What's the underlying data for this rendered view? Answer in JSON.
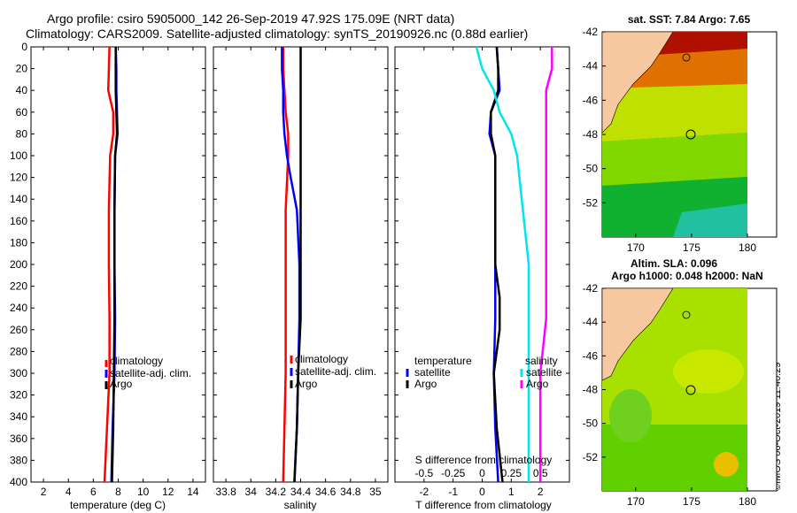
{
  "header": {
    "title_line1": "Argo profile: csiro 5905000_142 26-Sep-2019 47.92S 175.09E (NRT data)",
    "title_line2": "Climatology: CARS2009. Satellite-adjusted climatology: synTS_20190926.nc (0.88d earlier)"
  },
  "credit": "©IMOS 06-Oct-2019 11:40:29",
  "colors": {
    "climatology": "#ff0000",
    "satellite": "#0000ff",
    "argo": "#000000",
    "sat_salinity": "#00e5ee",
    "argo_salinity": "#ff00ff"
  },
  "chart_data": [
    {
      "type": "line",
      "id": "temperature",
      "xlabel": "temperature (deg C)",
      "ylabel": "",
      "xlim": [
        1,
        15
      ],
      "ylim": [
        400,
        0
      ],
      "xticks": [
        "2",
        "4",
        "6",
        "8",
        "10",
        "12",
        "14"
      ],
      "yticks": [
        "0",
        "20",
        "40",
        "60",
        "80",
        "100",
        "120",
        "140",
        "160",
        "180",
        "200",
        "220",
        "240",
        "260",
        "280",
        "300",
        "320",
        "340",
        "360",
        "380",
        "400"
      ],
      "legend": [
        "climatology",
        "satellite-adj. clim.",
        "Argo"
      ],
      "legend_position": "middle-right",
      "series": [
        {
          "name": "climatology",
          "depth": [
            0,
            20,
            40,
            60,
            80,
            100,
            150,
            200,
            250,
            300,
            350,
            400
          ],
          "values": [
            7.3,
            7.25,
            7.2,
            7.6,
            7.6,
            7.35,
            7.25,
            7.25,
            7.3,
            7.3,
            7.1,
            6.9
          ]
        },
        {
          "name": "satellite-adj. clim.",
          "depth": [
            0,
            20,
            40,
            60,
            80,
            100,
            150,
            200,
            250,
            300,
            350,
            400
          ],
          "values": [
            7.8,
            7.85,
            7.85,
            7.9,
            7.95,
            7.75,
            7.7,
            7.7,
            7.75,
            7.7,
            7.55,
            7.45
          ]
        },
        {
          "name": "Argo",
          "depth": [
            0,
            20,
            40,
            60,
            80,
            100,
            150,
            200,
            250,
            300,
            350,
            400
          ],
          "values": [
            7.8,
            7.8,
            7.8,
            7.85,
            7.9,
            7.75,
            7.7,
            7.7,
            7.7,
            7.65,
            7.6,
            7.5
          ]
        }
      ]
    },
    {
      "type": "line",
      "id": "salinity",
      "xlabel": "salinity",
      "ylabel": "",
      "xlim": [
        33.7,
        35.1
      ],
      "ylim": [
        400,
        0
      ],
      "xticks": [
        "33.8",
        "34",
        "34.2",
        "34.4",
        "34.6",
        "34.8",
        "35"
      ],
      "legend": [
        "climatology",
        "satellite-adj. clim.",
        "Argo"
      ],
      "legend_position": "middle-right",
      "series": [
        {
          "name": "climatology",
          "depth": [
            0,
            20,
            40,
            60,
            80,
            100,
            150,
            200,
            250,
            300,
            350,
            400
          ],
          "values": [
            34.26,
            34.26,
            34.27,
            34.28,
            34.3,
            34.3,
            34.28,
            34.28,
            34.28,
            34.28,
            34.27,
            34.26
          ]
        },
        {
          "name": "satellite-adj. clim.",
          "depth": [
            0,
            20,
            40,
            60,
            80,
            100,
            120,
            150,
            200,
            250,
            300,
            350,
            400
          ],
          "values": [
            34.25,
            34.25,
            34.26,
            34.26,
            34.27,
            34.29,
            34.32,
            34.37,
            34.39,
            34.39,
            34.38,
            34.37,
            34.35
          ]
        },
        {
          "name": "Argo",
          "depth": [
            0,
            20,
            40,
            60,
            80,
            100,
            150,
            200,
            250,
            300,
            350,
            400
          ],
          "values": [
            34.4,
            34.4,
            34.4,
            34.4,
            34.4,
            34.4,
            34.4,
            34.4,
            34.4,
            34.38,
            34.37,
            34.35
          ]
        }
      ]
    },
    {
      "type": "line",
      "id": "difference",
      "xlabel": "T difference from climatology",
      "xlabel_top": "S difference from climatology",
      "xlim": [
        -3,
        3
      ],
      "ylim": [
        400,
        0
      ],
      "xticks": [
        "-2",
        "-1",
        "0",
        "1",
        "2"
      ],
      "xticks_top": [
        "-0.5",
        "-0.25",
        "0",
        "0.25",
        "0.5"
      ],
      "legend_left_title": "temperature",
      "legend_left": [
        "satellite",
        "Argo"
      ],
      "legend_right_title": "salinity",
      "legend_right": [
        "satellite",
        "Argo"
      ],
      "series": [
        {
          "name": "T satellite",
          "depth": [
            0,
            20,
            40,
            60,
            80,
            100,
            150,
            200,
            250,
            300,
            350,
            400
          ],
          "values": [
            0.5,
            0.55,
            0.6,
            0.3,
            0.25,
            0.45,
            0.45,
            0.45,
            0.45,
            0.4,
            0.45,
            0.55
          ]
        },
        {
          "name": "T Argo",
          "depth": [
            0,
            20,
            40,
            60,
            80,
            100,
            150,
            200,
            230,
            260,
            300,
            350,
            400
          ],
          "values": [
            0.5,
            0.55,
            0.55,
            0.3,
            0.3,
            0.45,
            0.45,
            0.45,
            0.6,
            0.6,
            0.4,
            0.5,
            0.7
          ]
        },
        {
          "name": "S satellite",
          "depth": [
            0,
            20,
            40,
            60,
            80,
            100,
            150,
            200,
            250,
            300,
            350,
            400
          ],
          "values": [
            -0.05,
            0,
            0.1,
            0.15,
            0.25,
            0.3,
            0.35,
            0.4,
            0.4,
            0.4,
            0.4,
            0.4
          ]
        },
        {
          "name": "S Argo",
          "depth": [
            0,
            20,
            40,
            60,
            80,
            100,
            150,
            200,
            250,
            300,
            350,
            400
          ],
          "values": [
            0.6,
            0.6,
            0.55,
            0.55,
            0.55,
            0.55,
            0.55,
            0.55,
            0.55,
            0.5,
            0.5,
            0.5
          ]
        }
      ]
    },
    {
      "type": "heatmap",
      "id": "sst-map",
      "title": "sat. SST: 7.84 Argo: 7.65",
      "xticks": [
        "170",
        "175",
        "180"
      ],
      "yticks": [
        "-42",
        "-44",
        "-46",
        "-48",
        "-50",
        "-52"
      ],
      "xlim": [
        167,
        180
      ],
      "ylim": [
        -54,
        -42
      ],
      "marker": {
        "lon": 175.09,
        "lat": -47.92
      }
    },
    {
      "type": "heatmap",
      "id": "sla-map",
      "title_line1": "Altim. SLA: 0.096",
      "title_line2": "Argo h1000: 0.048 h2000: NaN",
      "xticks": [
        "170",
        "175",
        "180"
      ],
      "yticks": [
        "-42",
        "-44",
        "-46",
        "-48",
        "-50",
        "-52"
      ],
      "xlim": [
        167,
        180
      ],
      "ylim": [
        -54,
        -42
      ],
      "marker": {
        "lon": 175.09,
        "lat": -47.92
      }
    }
  ]
}
